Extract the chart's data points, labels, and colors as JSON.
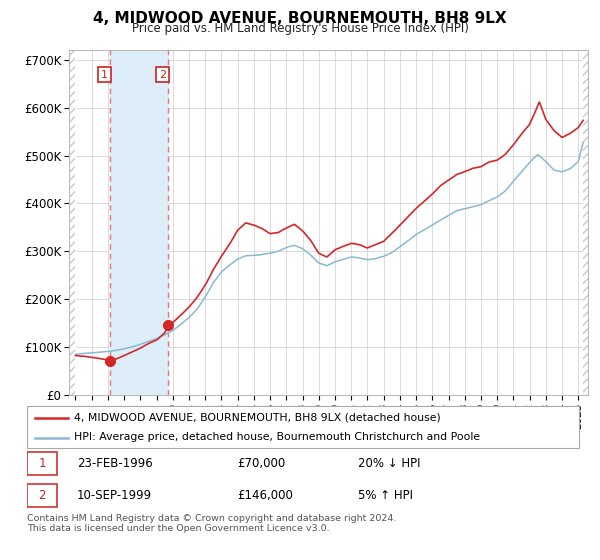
{
  "title": "4, MIDWOOD AVENUE, BOURNEMOUTH, BH8 9LX",
  "subtitle": "Price paid vs. HM Land Registry's House Price Index (HPI)",
  "legend_line1": "4, MIDWOOD AVENUE, BOURNEMOUTH, BH8 9LX (detached house)",
  "legend_line2": "HPI: Average price, detached house, Bournemouth Christchurch and Poole",
  "footnote": "Contains HM Land Registry data © Crown copyright and database right 2024.\nThis data is licensed under the Open Government Licence v3.0.",
  "sale1_label": "1",
  "sale1_date": "23-FEB-1996",
  "sale1_price": "£70,000",
  "sale1_hpi": "20% ↓ HPI",
  "sale2_label": "2",
  "sale2_date": "10-SEP-1999",
  "sale2_price": "£146,000",
  "sale2_hpi": "5% ↑ HPI",
  "hpi_color": "#89b8d4",
  "property_color": "#d62728",
  "sale_marker_color": "#d62728",
  "vline_color": "#e87878",
  "shade_color": "#ddeef8",
  "hatch_color": "#c8c8c8",
  "grid_color": "#cccccc",
  "ylim": [
    0,
    720000
  ],
  "yticks": [
    0,
    100000,
    200000,
    300000,
    400000,
    500000,
    600000,
    700000
  ],
  "sale1_x": 1996.14,
  "sale1_y": 70000,
  "sale2_x": 1999.72,
  "sale2_y": 146000,
  "x_data_start": 1994.0,
  "x_data_end": 2025.3,
  "xlim_start": 1993.6,
  "xlim_end": 2025.6,
  "hatch_right_start": 2025.3,
  "hpi_anchors_x": [
    1994.0,
    1995.0,
    1996.0,
    1996.5,
    1997.0,
    1997.5,
    1998.0,
    1998.5,
    1999.0,
    1999.5,
    2000.0,
    2000.5,
    2001.0,
    2001.5,
    2002.0,
    2002.5,
    2003.0,
    2003.5,
    2004.0,
    2004.5,
    2005.0,
    2005.5,
    2006.0,
    2006.5,
    2007.0,
    2007.5,
    2008.0,
    2008.5,
    2009.0,
    2009.5,
    2010.0,
    2010.5,
    2011.0,
    2011.5,
    2012.0,
    2012.5,
    2013.0,
    2013.5,
    2014.0,
    2014.5,
    2015.0,
    2015.5,
    2016.0,
    2016.5,
    2017.0,
    2017.5,
    2018.0,
    2018.5,
    2019.0,
    2019.5,
    2020.0,
    2020.5,
    2021.0,
    2021.5,
    2022.0,
    2022.5,
    2023.0,
    2023.5,
    2024.0,
    2024.5,
    2025.0,
    2025.3
  ],
  "hpi_anchors_y": [
    85000,
    88000,
    91000,
    93000,
    96000,
    100000,
    106000,
    112000,
    118000,
    126000,
    135000,
    148000,
    162000,
    180000,
    205000,
    235000,
    258000,
    272000,
    285000,
    292000,
    293000,
    295000,
    298000,
    302000,
    310000,
    315000,
    308000,
    295000,
    278000,
    272000,
    280000,
    285000,
    290000,
    288000,
    285000,
    287000,
    292000,
    300000,
    312000,
    325000,
    338000,
    348000,
    358000,
    368000,
    378000,
    388000,
    392000,
    396000,
    400000,
    408000,
    415000,
    428000,
    448000,
    468000,
    488000,
    505000,
    490000,
    472000,
    468000,
    475000,
    490000,
    530000
  ],
  "prop_anchors_x": [
    1994.0,
    1994.5,
    1995.0,
    1995.5,
    1996.0,
    1996.14,
    1996.5,
    1997.0,
    1997.5,
    1998.0,
    1998.5,
    1999.0,
    1999.5,
    1999.72,
    2000.0,
    2000.5,
    2001.0,
    2001.5,
    2002.0,
    2002.5,
    2003.0,
    2003.5,
    2004.0,
    2004.5,
    2005.0,
    2005.5,
    2006.0,
    2006.5,
    2007.0,
    2007.5,
    2008.0,
    2008.5,
    2009.0,
    2009.5,
    2010.0,
    2010.5,
    2011.0,
    2011.5,
    2012.0,
    2012.5,
    2013.0,
    2013.5,
    2014.0,
    2014.5,
    2015.0,
    2015.5,
    2016.0,
    2016.5,
    2017.0,
    2017.5,
    2018.0,
    2018.5,
    2019.0,
    2019.5,
    2020.0,
    2020.5,
    2021.0,
    2021.5,
    2022.0,
    2022.3,
    2022.6,
    2023.0,
    2023.5,
    2024.0,
    2024.5,
    2025.0,
    2025.3
  ],
  "prop_anchors_y": [
    82000,
    80000,
    78000,
    75000,
    72000,
    70000,
    74000,
    82000,
    90000,
    98000,
    108000,
    115000,
    130000,
    146000,
    152000,
    168000,
    185000,
    205000,
    230000,
    262000,
    290000,
    315000,
    345000,
    360000,
    355000,
    348000,
    338000,
    340000,
    350000,
    358000,
    345000,
    325000,
    298000,
    290000,
    305000,
    312000,
    318000,
    315000,
    308000,
    315000,
    322000,
    338000,
    355000,
    372000,
    390000,
    405000,
    420000,
    438000,
    450000,
    462000,
    468000,
    475000,
    478000,
    488000,
    492000,
    505000,
    525000,
    548000,
    568000,
    590000,
    615000,
    578000,
    555000,
    540000,
    548000,
    560000,
    575000
  ]
}
